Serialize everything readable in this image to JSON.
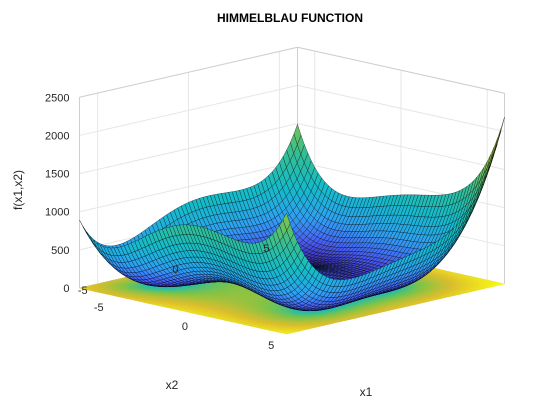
{
  "chart_data": {
    "type": "surface",
    "title": "HIMMELBLAU FUNCTION",
    "xlabel": "x1",
    "ylabel": "x2",
    "zlabel": "f(x1,x2)",
    "function": "(x1^2 + x2 - 11)^2 + (x1 + x2^2 - 7)^2",
    "x_range": [
      -6,
      6
    ],
    "y_range": [
      -6,
      6
    ],
    "zlim": [
      0,
      2500
    ],
    "x_ticks": [
      -5,
      0,
      5
    ],
    "y_ticks": [
      -5,
      0,
      5
    ],
    "z_ticks": [
      0,
      500,
      1000,
      1500,
      2000,
      2500
    ],
    "view_azimuth_deg": -37.5,
    "view_elevation_deg": 30,
    "grid": true,
    "contour_floor": true,
    "colormap": "parula",
    "colors": {
      "low": "#3e26a8",
      "mid_low": "#2f9ff3",
      "mid": "#23b4a6",
      "mid_high": "#a9bf2d",
      "high": "#f9fb15",
      "mesh_edge": "#000000",
      "grid": "#e6e6e6",
      "axis": "#262626"
    }
  }
}
